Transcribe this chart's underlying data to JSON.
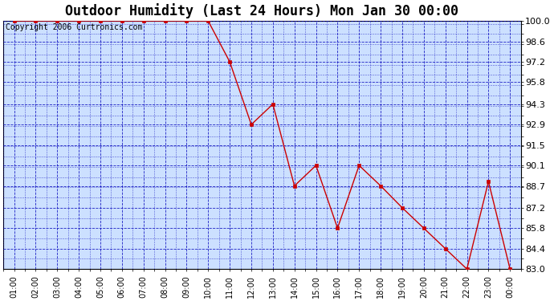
{
  "title": "Outdoor Humidity (Last 24 Hours) Mon Jan 30 00:00",
  "copyright": "Copyright 2006 Curtronics.com",
  "x_labels": [
    "01:00",
    "02:00",
    "03:00",
    "04:00",
    "05:00",
    "06:00",
    "07:00",
    "08:00",
    "09:00",
    "10:00",
    "11:00",
    "12:00",
    "13:00",
    "14:00",
    "15:00",
    "16:00",
    "17:00",
    "18:00",
    "19:00",
    "20:00",
    "21:00",
    "22:00",
    "23:00",
    "00:00"
  ],
  "y_values": [
    100.0,
    100.0,
    100.0,
    100.0,
    100.0,
    100.0,
    100.0,
    100.0,
    100.0,
    100.0,
    97.2,
    92.9,
    94.3,
    88.7,
    90.1,
    85.8,
    90.1,
    88.7,
    87.2,
    85.8,
    84.4,
    83.0,
    89.0,
    83.0
  ],
  "ylim_min": 83.0,
  "ylim_max": 100.0,
  "y_ticks": [
    83.0,
    84.4,
    85.8,
    87.2,
    88.7,
    90.1,
    91.5,
    92.9,
    94.3,
    95.8,
    97.2,
    98.6,
    100.0
  ],
  "line_color": "#cc0000",
  "marker_color": "#cc0000",
  "plot_bg_color": "#cce0ff",
  "grid_color": "#0000bb",
  "title_fontsize": 12,
  "copyright_fontsize": 7,
  "tick_fontsize": 8,
  "xtick_fontsize": 7
}
